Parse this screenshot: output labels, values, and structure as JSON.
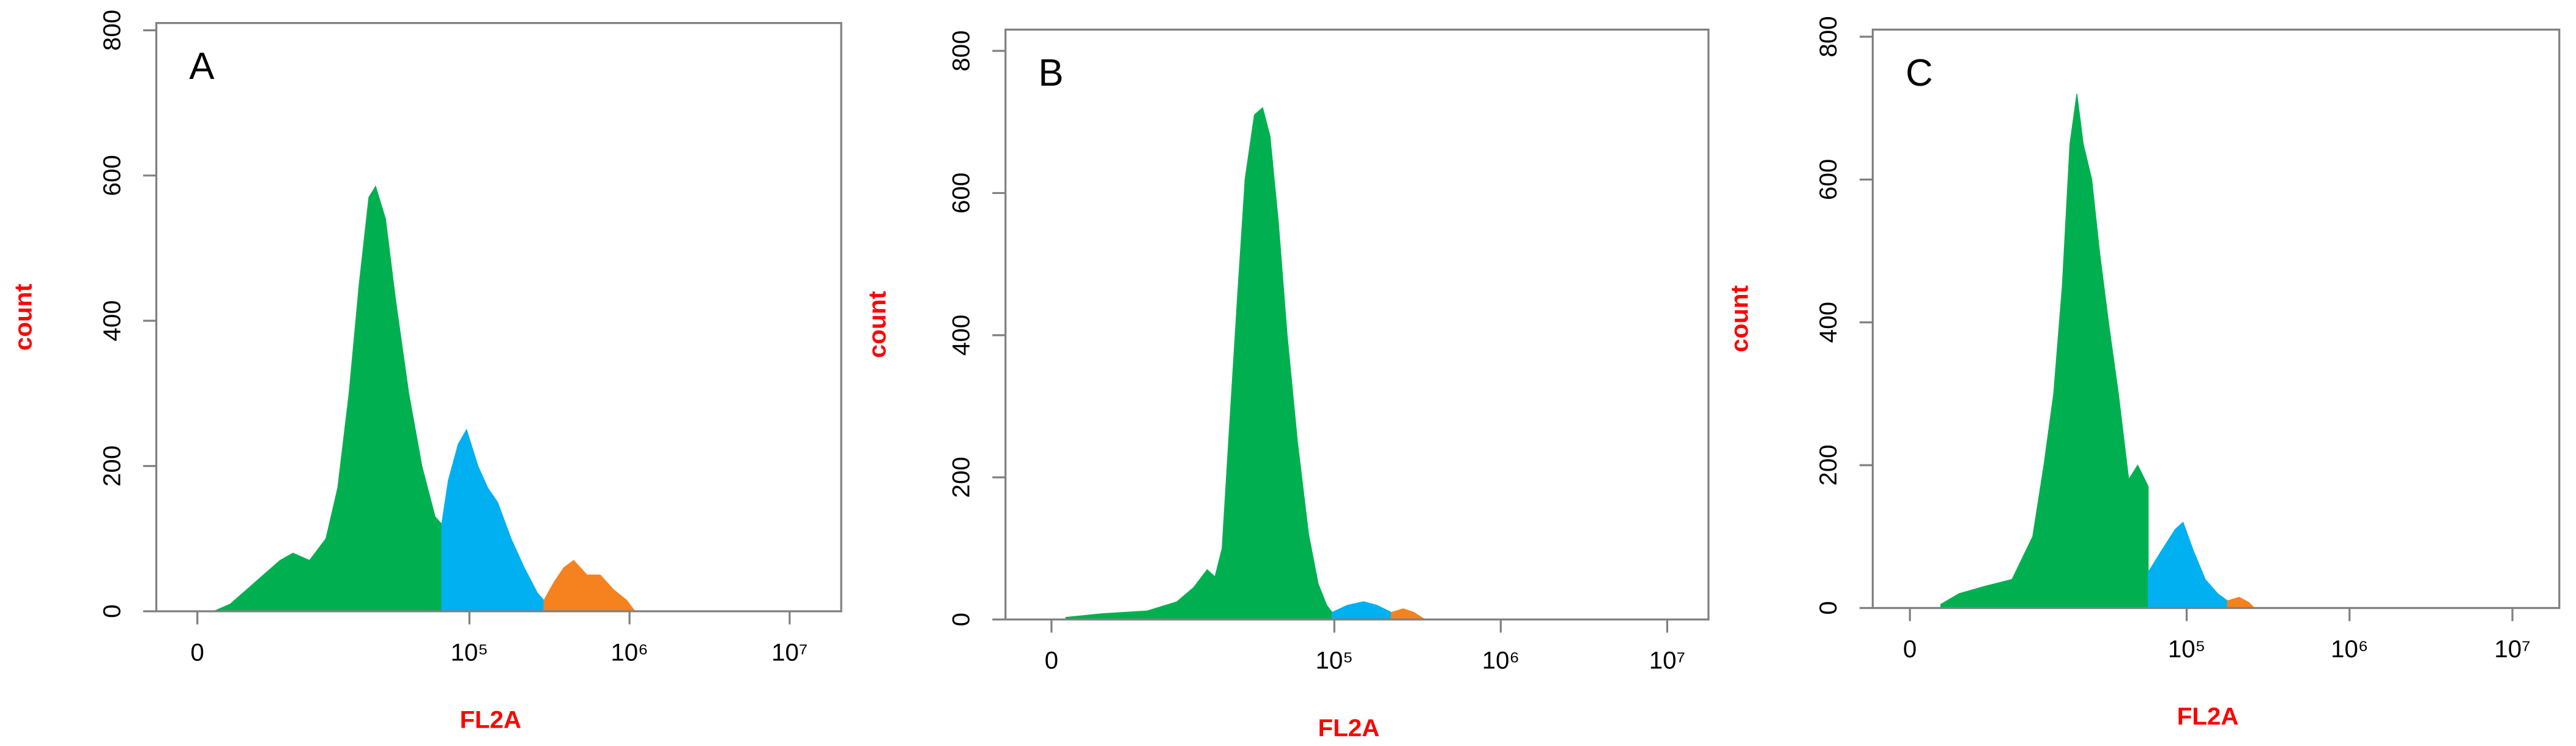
{
  "chart_data": [
    {
      "type": "area",
      "annotation": "A",
      "xlabel": "FL2A",
      "ylabel": "count",
      "xscale": "biexponential",
      "xlim": [
        -2500,
        21000000
      ],
      "ylim": [
        0,
        810
      ],
      "xticks": [
        0,
        {
          "value": 100000,
          "label": "10⁵"
        },
        {
          "value": 1000000,
          "label": "10⁶"
        },
        {
          "value": 10000000,
          "label": "10⁷"
        }
      ],
      "yticks": [
        0,
        200,
        400,
        600,
        800
      ],
      "series": [
        {
          "color": "#00b050",
          "x": [
            960,
            1970,
            3100,
            4400,
            5960,
            7400,
            9640,
            12400,
            14800,
            17500,
            20300,
            23400,
            25800,
            29800,
            34400,
            41700,
            50400,
            61000,
            67100
          ],
          "values": [
            0,
            10,
            30,
            50,
            70,
            80,
            70,
            100,
            170,
            300,
            450,
            570,
            585,
            540,
            430,
            300,
            200,
            130,
            120
          ]
        },
        {
          "color": "#00b0f0",
          "x": [
            67100,
            73800,
            85100,
            95900,
            113000,
            130000,
            150000,
            182000,
            220000,
            266000,
            292000
          ],
          "values": [
            120,
            180,
            230,
            250,
            200,
            170,
            150,
            100,
            60,
            25,
            15
          ]
        },
        {
          "color": "#f5821f",
          "x": [
            292000,
            338000,
            389000,
            448000,
            542000,
            656000,
            792000,
            960000,
            1080000
          ],
          "values": [
            15,
            40,
            60,
            70,
            50,
            50,
            30,
            15,
            0
          ]
        }
      ]
    },
    {
      "type": "area",
      "annotation": "B",
      "xlabel": "FL2A",
      "ylabel": "count",
      "xscale": "biexponential",
      "xlim": [
        -2720,
        17700000
      ],
      "ylim": [
        0,
        830
      ],
      "xticks": [
        0,
        {
          "value": 100000,
          "label": "10⁵"
        },
        {
          "value": 1000000,
          "label": "10⁶"
        },
        {
          "value": 10000000,
          "label": "10⁷"
        }
      ],
      "yticks": [
        0,
        200,
        400,
        600,
        800
      ],
      "series": [
        {
          "color": "#00b050",
          "x": [
            800,
            3000,
            7000,
            11000,
            14000,
            17000,
            19000,
            21000,
            23000,
            26000,
            29000,
            33000,
            37000,
            41000,
            46000,
            52000,
            60000,
            70000,
            80000,
            90000,
            97000
          ],
          "values": [
            3,
            8,
            12,
            25,
            45,
            70,
            60,
            100,
            250,
            450,
            620,
            710,
            720,
            680,
            560,
            400,
            250,
            120,
            50,
            20,
            10
          ]
        },
        {
          "color": "#00b0f0",
          "x": [
            97000,
            120000,
            150000,
            180000,
            220000
          ],
          "values": [
            10,
            20,
            25,
            20,
            10
          ]
        },
        {
          "color": "#f5821f",
          "x": [
            220000,
            260000,
            300000,
            350000
          ],
          "values": [
            10,
            15,
            10,
            0
          ]
        }
      ]
    },
    {
      "type": "area",
      "annotation": "C",
      "xlabel": "FL2A",
      "ylabel": "count",
      "xscale": "biexponential",
      "xlim": [
        -2200,
        19400000
      ],
      "ylim": [
        0,
        810
      ],
      "xticks": [
        0,
        {
          "value": 100000,
          "label": "10⁵"
        },
        {
          "value": 1000000,
          "label": "10⁶"
        },
        {
          "value": 10000000,
          "label": "10⁷"
        }
      ],
      "yticks": [
        0,
        200,
        400,
        600,
        800
      ],
      "series": [
        {
          "color": "#00b050",
          "x": [
            1800,
            3000,
            5000,
            8000,
            11000,
            13000,
            15000,
            17000,
            19000,
            21000,
            23000,
            26000,
            29000,
            33000,
            38000,
            44000,
            50000,
            58000
          ],
          "values": [
            5,
            20,
            30,
            40,
            100,
            200,
            300,
            450,
            650,
            720,
            650,
            600,
            500,
            400,
            300,
            180,
            200,
            170
          ]
        },
        {
          "color": "#00b0f0",
          "x": [
            58000,
            70000,
            85000,
            95000,
            110000,
            130000,
            155000,
            178000
          ],
          "values": [
            50,
            80,
            110,
            120,
            80,
            40,
            20,
            10
          ]
        },
        {
          "color": "#f5821f",
          "x": [
            178000,
            210000,
            240000,
            260000
          ],
          "values": [
            10,
            15,
            8,
            0
          ]
        }
      ]
    }
  ]
}
